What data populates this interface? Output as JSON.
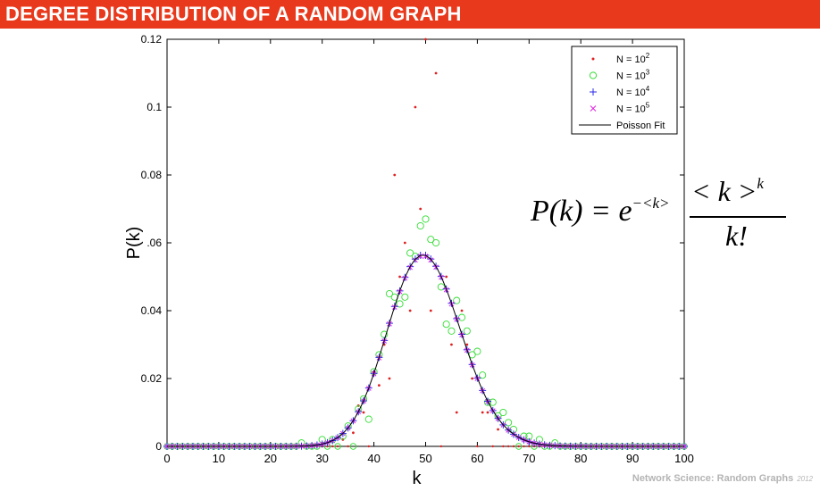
{
  "slide_title": "DEGREE DISTRIBUTION OF A RANDOM GRAPH",
  "footer": {
    "text": "Network Science: Random Graphs",
    "year": "2012"
  },
  "formula": {
    "lhs": "P(k) = e",
    "exponent": "−<k>",
    "numerator": "< k >",
    "numerator_power": "k",
    "denominator": "k!"
  },
  "colors": {
    "title_bg": "#e8391c",
    "n100": "#e02020",
    "n1000": "#33dd33",
    "n10000": "#2a2aee",
    "n100000": "#e020e0",
    "fit": "#000000"
  },
  "chart_data": {
    "type": "scatter",
    "title": "",
    "xlabel": "k",
    "ylabel": "P(k)",
    "xlim": [
      0,
      100
    ],
    "ylim": [
      0,
      0.12
    ],
    "xticks": [
      "0",
      "10",
      "20",
      "30",
      "40",
      "50",
      "60",
      "70",
      "80",
      "90",
      "100"
    ],
    "yticks": [
      "0",
      "0.02",
      "0.04",
      ".06",
      "0.08",
      "0.1",
      "0.12"
    ],
    "legend_position": "top-right",
    "mean_degree": 50,
    "series": [
      {
        "name": "N = 10",
        "power": "2",
        "marker": "dot",
        "color": "#e02020",
        "points": [
          [
            34,
            0.002
          ],
          [
            36,
            0.004
          ],
          [
            37,
            0.012
          ],
          [
            38,
            0.01
          ],
          [
            40,
            0.022
          ],
          [
            41,
            0.018
          ],
          [
            42,
            0.03
          ],
          [
            43,
            0.02
          ],
          [
            44,
            0.08
          ],
          [
            45,
            0.05
          ],
          [
            46,
            0.06
          ],
          [
            47,
            0.04
          ],
          [
            48,
            0.1
          ],
          [
            49,
            0.07
          ],
          [
            50,
            0.12
          ],
          [
            51,
            0.04
          ],
          [
            52,
            0.11
          ],
          [
            54,
            0.05
          ],
          [
            55,
            0.03
          ],
          [
            56,
            0.01
          ],
          [
            57,
            0.04
          ],
          [
            58,
            0.03
          ],
          [
            59,
            0.02
          ],
          [
            61,
            0.01
          ],
          [
            62,
            0.01
          ],
          [
            64,
            0.005
          ]
        ]
      },
      {
        "name": "N = 10",
        "power": "3",
        "marker": "circle",
        "color": "#33dd33",
        "points": [
          [
            26,
            0.001
          ],
          [
            30,
            0.002
          ],
          [
            32,
            0.002
          ],
          [
            34,
            0.003
          ],
          [
            35,
            0.006
          ],
          [
            37,
            0.011
          ],
          [
            38,
            0.014
          ],
          [
            39,
            0.008
          ],
          [
            40,
            0.022
          ],
          [
            41,
            0.027
          ],
          [
            42,
            0.033
          ],
          [
            43,
            0.045
          ],
          [
            44,
            0.044
          ],
          [
            45,
            0.042
          ],
          [
            46,
            0.044
          ],
          [
            47,
            0.057
          ],
          [
            48,
            0.056
          ],
          [
            49,
            0.065
          ],
          [
            50,
            0.067
          ],
          [
            51,
            0.061
          ],
          [
            52,
            0.06
          ],
          [
            53,
            0.047
          ],
          [
            54,
            0.036
          ],
          [
            55,
            0.034
          ],
          [
            56,
            0.043
          ],
          [
            57,
            0.038
          ],
          [
            58,
            0.034
          ],
          [
            59,
            0.027
          ],
          [
            60,
            0.028
          ],
          [
            61,
            0.021
          ],
          [
            62,
            0.013
          ],
          [
            63,
            0.013
          ],
          [
            64,
            0.009
          ],
          [
            65,
            0.01
          ],
          [
            66,
            0.007
          ],
          [
            67,
            0.005
          ],
          [
            69,
            0.003
          ],
          [
            70,
            0.003
          ],
          [
            72,
            0.002
          ],
          [
            75,
            0.001
          ]
        ]
      },
      {
        "name": "N = 10",
        "power": "4",
        "marker": "plus",
        "color": "#2a2aee",
        "from_fit": true
      },
      {
        "name": "N = 10",
        "power": "5",
        "marker": "cross",
        "color": "#e020e0",
        "from_fit": true
      },
      {
        "name": "Poisson Fit",
        "marker": "line",
        "color": "#000000",
        "from_fit": true
      }
    ]
  }
}
